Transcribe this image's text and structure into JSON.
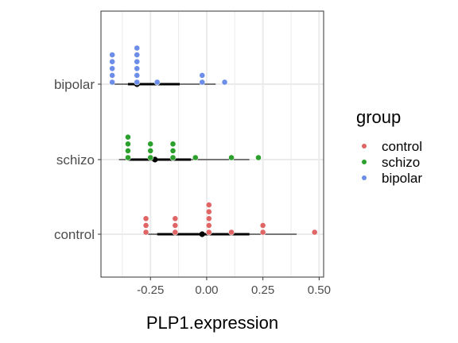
{
  "chart_data": {
    "type": "dotplot",
    "xlabel": "PLP1.expression",
    "ylabel": "",
    "xlim": [
      -0.47,
      0.52
    ],
    "x_ticks": [
      -0.25,
      0.0,
      0.25,
      0.5
    ],
    "x_tick_labels": [
      "-0.25",
      "0.00",
      "0.25",
      "0.50"
    ],
    "categories": [
      "control",
      "schizo",
      "bipolar"
    ],
    "grid": true,
    "legend": {
      "title": "group",
      "position": "right",
      "entries": [
        "control",
        "schizo",
        "bipolar"
      ]
    },
    "colors": {
      "control": "#E06666",
      "schizo": "#2CA02C",
      "bipolar": "#6C8EE8"
    },
    "series": [
      {
        "name": "control",
        "points": [
          {
            "x": -0.27,
            "n": 3
          },
          {
            "x": -0.14,
            "n": 3
          },
          {
            "x": 0.01,
            "n": 5
          },
          {
            "x": 0.11,
            "n": 1
          },
          {
            "x": 0.25,
            "n": 2
          },
          {
            "x": 0.48,
            "n": 1
          }
        ],
        "summary": {
          "mean": -0.02,
          "inner": [
            -0.22,
            0.19
          ],
          "outer": [
            -0.28,
            0.4
          ]
        }
      },
      {
        "name": "schizo",
        "points": [
          {
            "x": -0.35,
            "n": 4
          },
          {
            "x": -0.25,
            "n": 3
          },
          {
            "x": -0.15,
            "n": 3
          },
          {
            "x": -0.05,
            "n": 1
          },
          {
            "x": 0.11,
            "n": 1
          },
          {
            "x": 0.23,
            "n": 1
          }
        ],
        "summary": {
          "mean": -0.23,
          "inner": [
            -0.35,
            -0.07
          ],
          "outer": [
            -0.39,
            0.19
          ]
        }
      },
      {
        "name": "bipolar",
        "points": [
          {
            "x": -0.42,
            "n": 5
          },
          {
            "x": -0.31,
            "n": 6
          },
          {
            "x": -0.22,
            "n": 1
          },
          {
            "x": -0.02,
            "n": 2
          },
          {
            "x": 0.08,
            "n": 1
          }
        ],
        "summary": {
          "mean": -0.31,
          "inner": [
            -0.35,
            -0.12
          ],
          "outer": [
            -0.42,
            0.04
          ]
        }
      }
    ]
  }
}
